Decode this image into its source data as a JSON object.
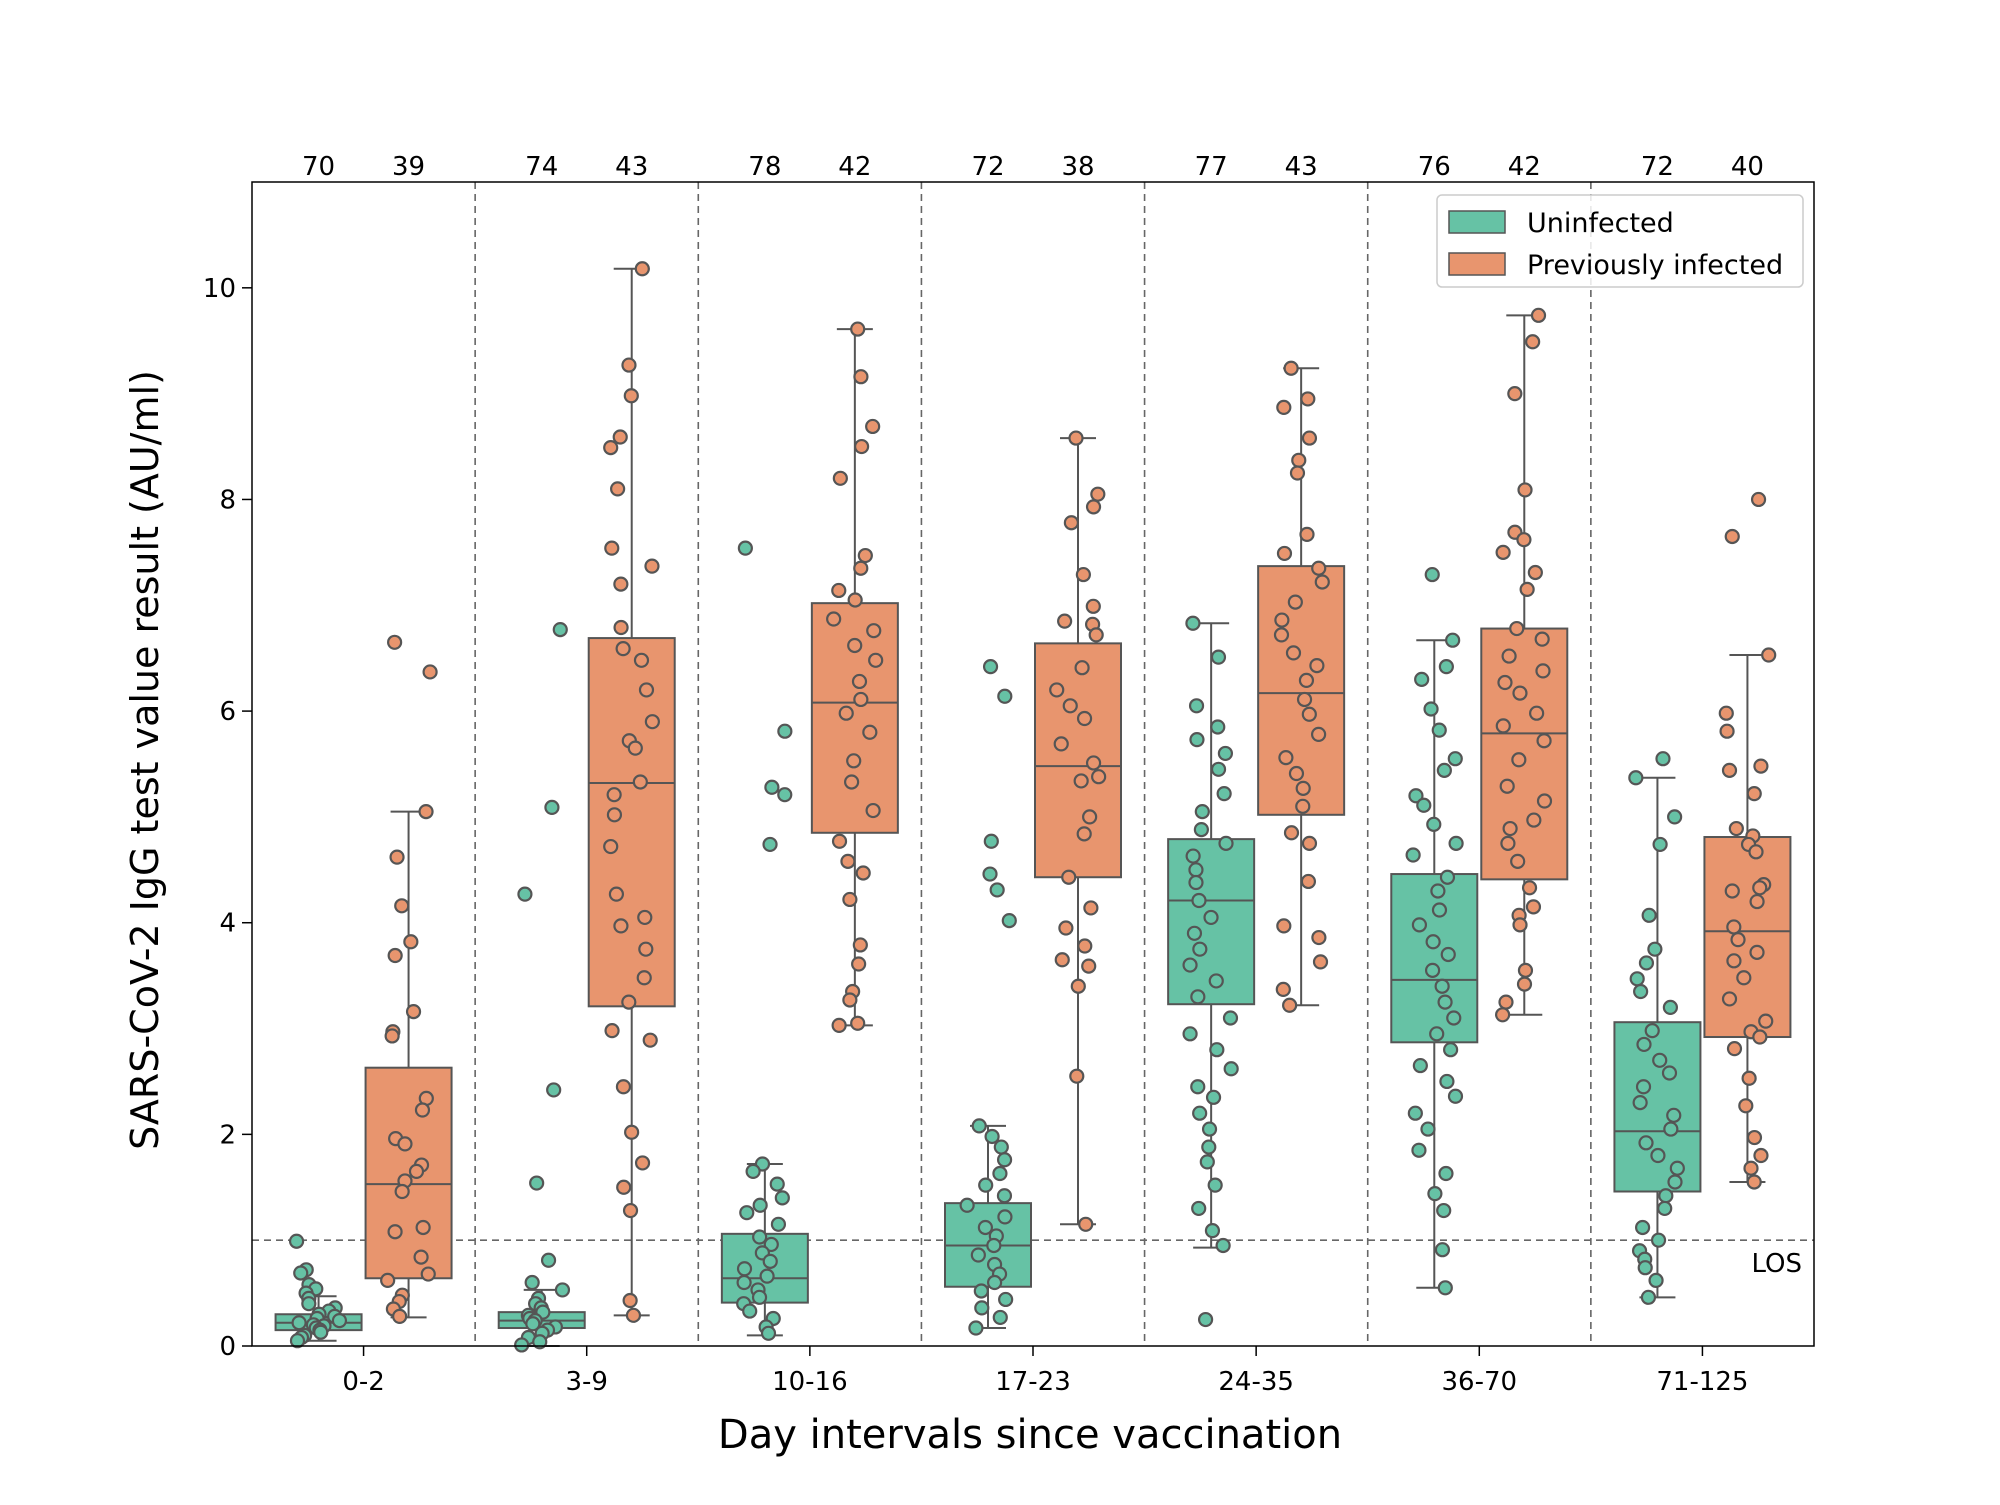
{
  "chart_data": {
    "type": "box",
    "xlabel": "Day intervals since vaccination",
    "ylabel": "SARS-CoV-2 IgG test value result (AU/ml)",
    "ylim": [
      0,
      11
    ],
    "yticks": [
      0,
      2,
      4,
      6,
      8,
      10
    ],
    "categories": [
      "0-2",
      "3-9",
      "10-16",
      "17-23",
      "24-35",
      "36-70",
      "71-125"
    ],
    "legend": {
      "position": "top-right"
    },
    "reference_line": {
      "y": 1.0,
      "label": "LOS"
    },
    "series": [
      {
        "name": "Uninfected",
        "color": "#66c2a5",
        "counts": [
          70,
          74,
          78,
          72,
          77,
          76,
          72
        ],
        "boxes": [
          {
            "whisker_low": 0.05,
            "q1": 0.15,
            "median": 0.22,
            "q3": 0.3,
            "whisker_high": 0.47,
            "points": [
              0.99,
              0.72,
              0.69,
              0.58,
              0.54,
              0.5,
              0.45,
              0.4,
              0.36,
              0.33,
              0.3,
              0.28,
              0.26,
              0.24,
              0.22,
              0.2,
              0.19,
              0.17,
              0.15,
              0.13,
              0.1,
              0.08,
              0.05
            ]
          },
          {
            "whisker_low": 0.0,
            "q1": 0.17,
            "median": 0.24,
            "q3": 0.32,
            "whisker_high": 0.53,
            "points": [
              6.77,
              5.09,
              4.27,
              2.42,
              1.54,
              0.81,
              0.6,
              0.53,
              0.45,
              0.4,
              0.36,
              0.32,
              0.29,
              0.26,
              0.24,
              0.21,
              0.18,
              0.15,
              0.12,
              0.08,
              0.04,
              0.01
            ]
          },
          {
            "whisker_low": 0.1,
            "q1": 0.41,
            "median": 0.64,
            "q3": 1.06,
            "whisker_high": 1.72,
            "points": [
              7.54,
              5.81,
              5.28,
              5.21,
              4.74,
              1.72,
              1.65,
              1.53,
              1.4,
              1.33,
              1.26,
              1.15,
              1.03,
              0.96,
              0.88,
              0.8,
              0.73,
              0.66,
              0.6,
              0.53,
              0.46,
              0.4,
              0.33,
              0.26,
              0.18,
              0.12
            ]
          },
          {
            "whisker_low": 0.17,
            "q1": 0.56,
            "median": 0.95,
            "q3": 1.35,
            "whisker_high": 2.08,
            "points": [
              6.42,
              6.14,
              4.77,
              4.46,
              4.31,
              4.02,
              2.08,
              1.98,
              1.88,
              1.76,
              1.63,
              1.52,
              1.42,
              1.33,
              1.22,
              1.12,
              1.04,
              0.95,
              0.86,
              0.77,
              0.68,
              0.6,
              0.52,
              0.44,
              0.36,
              0.27,
              0.17
            ]
          },
          {
            "whisker_low": 0.93,
            "q1": 3.23,
            "median": 4.21,
            "q3": 4.79,
            "whisker_high": 6.83,
            "points": [
              0.25,
              6.83,
              6.51,
              6.05,
              5.85,
              5.73,
              5.6,
              5.45,
              5.22,
              5.05,
              4.88,
              4.75,
              4.63,
              4.5,
              4.38,
              4.21,
              4.05,
              3.9,
              3.75,
              3.6,
              3.45,
              3.3,
              3.1,
              2.95,
              2.8,
              2.62,
              2.45,
              2.35,
              2.2,
              2.05,
              1.88,
              1.74,
              1.52,
              1.3,
              1.09,
              0.95
            ]
          },
          {
            "whisker_low": 0.55,
            "q1": 2.87,
            "median": 3.46,
            "q3": 4.46,
            "whisker_high": 6.67,
            "points": [
              7.29,
              6.67,
              6.42,
              6.3,
              6.02,
              5.82,
              5.55,
              5.44,
              5.2,
              5.11,
              4.93,
              4.75,
              4.64,
              4.43,
              4.3,
              4.12,
              3.98,
              3.82,
              3.7,
              3.55,
              3.4,
              3.25,
              3.1,
              2.95,
              2.8,
              2.65,
              2.5,
              2.36,
              2.2,
              2.05,
              1.85,
              1.63,
              1.44,
              1.28,
              0.91,
              0.55
            ]
          },
          {
            "whisker_low": 0.46,
            "q1": 1.46,
            "median": 2.03,
            "q3": 3.06,
            "whisker_high": 5.37,
            "points": [
              5.55,
              5.37,
              5.0,
              4.74,
              4.07,
              3.75,
              3.62,
              3.47,
              3.35,
              3.2,
              2.98,
              2.85,
              2.7,
              2.58,
              2.45,
              2.3,
              2.18,
              2.05,
              1.92,
              1.8,
              1.68,
              1.55,
              1.42,
              1.3,
              1.12,
              1.0,
              0.9,
              0.82,
              0.74,
              0.62,
              0.46
            ]
          }
        ]
      },
      {
        "name": "Previously infected",
        "color": "#e8956e",
        "counts": [
          39,
          43,
          42,
          38,
          43,
          42,
          40
        ],
        "boxes": [
          {
            "whisker_low": 0.27,
            "q1": 0.64,
            "median": 1.53,
            "q3": 2.63,
            "whisker_high": 5.05,
            "points": [
              6.65,
              6.37,
              5.05,
              4.62,
              4.16,
              3.82,
              3.69,
              3.16,
              2.97,
              2.93,
              2.34,
              2.23,
              1.96,
              1.91,
              1.71,
              1.65,
              1.56,
              1.46,
              1.12,
              1.08,
              0.84,
              0.68,
              0.62,
              0.48,
              0.42,
              0.35,
              0.28
            ]
          },
          {
            "whisker_low": 0.29,
            "q1": 3.21,
            "median": 5.32,
            "q3": 6.69,
            "whisker_high": 10.18,
            "points": [
              10.18,
              9.27,
              8.98,
              8.59,
              8.49,
              8.1,
              7.54,
              7.37,
              7.2,
              6.79,
              6.59,
              6.48,
              6.2,
              5.9,
              5.72,
              5.65,
              5.33,
              5.21,
              5.02,
              4.72,
              4.27,
              4.05,
              3.97,
              3.75,
              3.48,
              3.25,
              2.98,
              2.89,
              2.45,
              2.02,
              1.73,
              1.5,
              1.28,
              0.43,
              0.29
            ]
          },
          {
            "whisker_low": 3.03,
            "q1": 4.85,
            "median": 6.08,
            "q3": 7.02,
            "whisker_high": 9.61,
            "points": [
              9.61,
              9.16,
              8.69,
              8.5,
              8.2,
              7.47,
              7.35,
              7.14,
              7.05,
              6.87,
              6.76,
              6.62,
              6.48,
              6.28,
              6.11,
              5.98,
              5.8,
              5.53,
              5.33,
              5.06,
              4.77,
              4.58,
              4.47,
              4.22,
              3.79,
              3.61,
              3.35,
              3.27,
              3.05,
              3.03
            ]
          },
          {
            "whisker_low": 1.15,
            "q1": 4.43,
            "median": 5.48,
            "q3": 6.64,
            "whisker_high": 8.58,
            "points": [
              8.58,
              8.05,
              7.93,
              7.78,
              7.29,
              6.99,
              6.85,
              6.82,
              6.72,
              6.41,
              6.2,
              6.05,
              5.93,
              5.69,
              5.51,
              5.38,
              5.34,
              5.0,
              4.84,
              4.43,
              4.14,
              3.95,
              3.78,
              3.65,
              3.59,
              3.4,
              2.55,
              1.15
            ]
          },
          {
            "whisker_low": 3.22,
            "q1": 5.02,
            "median": 6.17,
            "q3": 7.37,
            "whisker_high": 9.24,
            "points": [
              9.24,
              8.95,
              8.87,
              8.58,
              8.37,
              8.25,
              7.67,
              7.49,
              7.35,
              7.22,
              7.03,
              6.86,
              6.72,
              6.55,
              6.43,
              6.29,
              6.11,
              5.97,
              5.78,
              5.56,
              5.41,
              5.27,
              5.1,
              4.85,
              4.75,
              4.39,
              3.97,
              3.86,
              3.63,
              3.37,
              3.22
            ]
          },
          {
            "whisker_low": 3.13,
            "q1": 4.41,
            "median": 5.79,
            "q3": 6.78,
            "whisker_high": 9.74,
            "points": [
              9.74,
              9.49,
              9.0,
              8.09,
              7.69,
              7.62,
              7.5,
              7.31,
              7.15,
              6.78,
              6.68,
              6.52,
              6.38,
              6.27,
              6.17,
              5.98,
              5.86,
              5.72,
              5.54,
              5.29,
              5.15,
              4.97,
              4.89,
              4.75,
              4.58,
              4.33,
              4.15,
              4.07,
              3.98,
              3.55,
              3.42,
              3.25,
              3.13
            ]
          },
          {
            "whisker_low": 1.55,
            "q1": 2.92,
            "median": 3.92,
            "q3": 4.81,
            "whisker_high": 6.53,
            "points": [
              8.0,
              7.65,
              6.53,
              5.98,
              5.81,
              5.48,
              5.44,
              5.22,
              4.89,
              4.82,
              4.74,
              4.67,
              4.36,
              4.33,
              4.3,
              4.2,
              3.96,
              3.84,
              3.72,
              3.64,
              3.48,
              3.28,
              3.07,
              2.97,
              2.92,
              2.81,
              2.53,
              2.27,
              1.97,
              1.8,
              1.68,
              1.55
            ]
          }
        ]
      }
    ]
  }
}
